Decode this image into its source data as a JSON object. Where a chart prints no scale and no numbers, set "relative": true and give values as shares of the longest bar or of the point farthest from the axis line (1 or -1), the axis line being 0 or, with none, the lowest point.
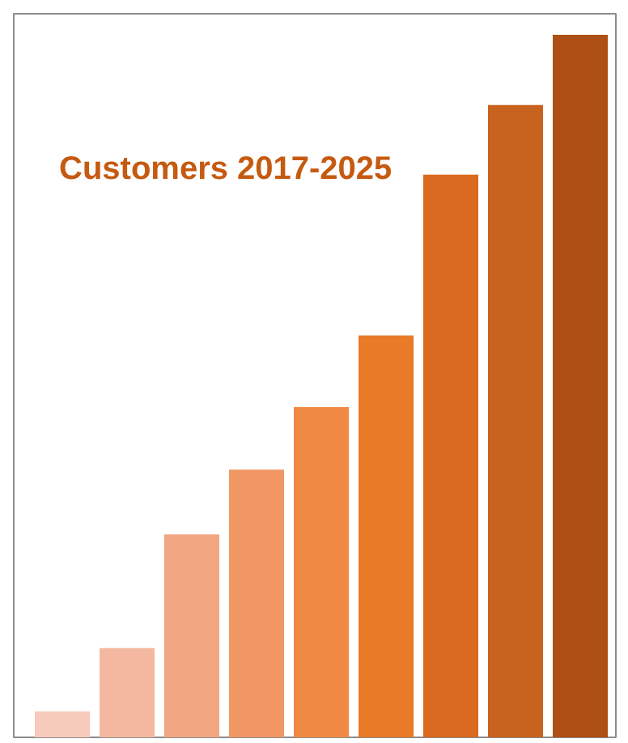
{
  "chart_data": {
    "type": "bar",
    "title": "Customers 2017-2025",
    "relative": true,
    "categories": [
      null,
      null,
      null,
      null,
      null,
      null,
      null,
      null,
      null
    ],
    "values": [
      0.037,
      0.127,
      0.289,
      0.381,
      0.47,
      0.572,
      0.801,
      0.9,
      1.0
    ],
    "colors": [
      "#f7cbbb",
      "#f4b8a0",
      "#f2a783",
      "#f19764",
      "#ef8943",
      "#e97a27",
      "#d96a20",
      "#c8621f",
      "#ae4f16"
    ]
  }
}
